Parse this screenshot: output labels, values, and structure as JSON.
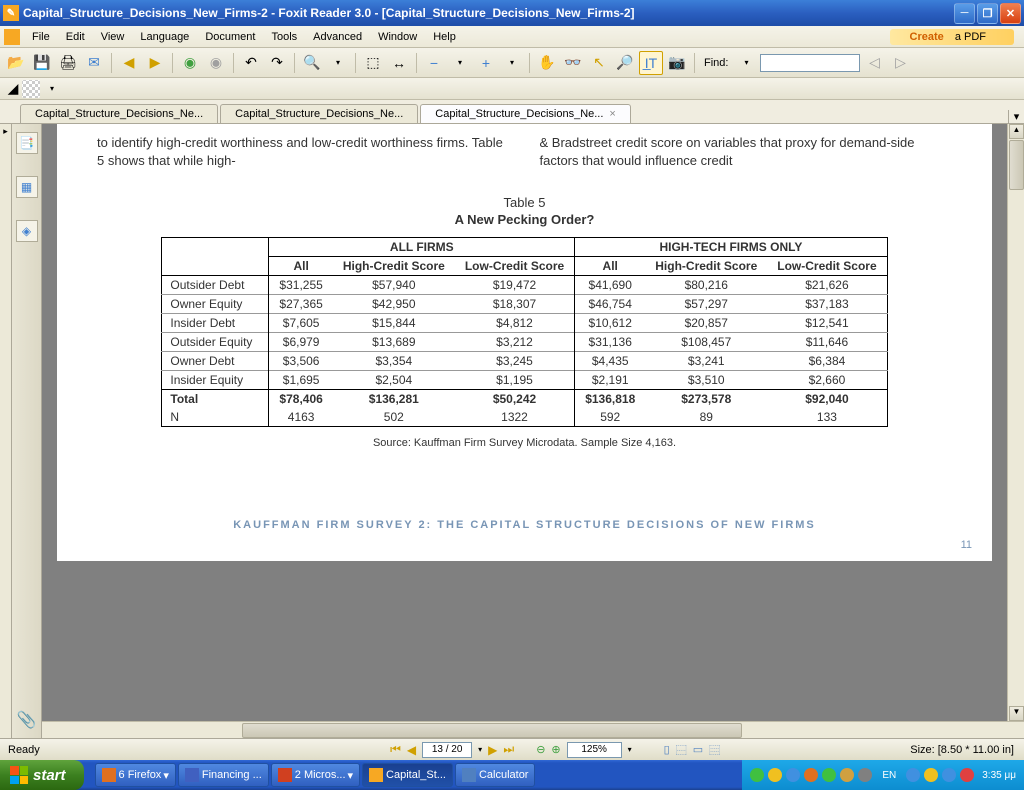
{
  "window": {
    "title": "Capital_Structure_Decisions_New_Firms-2 - Foxit Reader 3.0 - [Capital_Structure_Decisions_New_Firms-2]"
  },
  "menu": {
    "file": "File",
    "edit": "Edit",
    "view": "View",
    "language": "Language",
    "document": "Document",
    "tools": "Tools",
    "advanced": "Advanced",
    "window": "Window",
    "help": "Help",
    "create": "Create",
    "apdf": " a PDF"
  },
  "toolbar": {
    "find": "Find:"
  },
  "tabs": {
    "t1": "Capital_Structure_Decisions_Ne...",
    "t2": "Capital_Structure_Decisions_Ne...",
    "t3": "Capital_Structure_Decisions_Ne..."
  },
  "doc": {
    "col1": "to identify high-credit worthiness and low-credit worthiness firms. Table 5 shows that while high-",
    "col2": "& Bradstreet credit score on variables that proxy for demand-side factors that would influence credit",
    "table_num": "Table 5",
    "table_title": "A New Pecking Order?",
    "group1": "ALL FIRMS",
    "group2": "HIGH-TECH FIRMS ONLY",
    "sub_all": "All",
    "sub_high": "High-Credit Score",
    "sub_low": "Low-Credit Score",
    "rows": {
      "r0": {
        "label": "Outsider Debt",
        "c1": "$31,255",
        "c2": "$57,940",
        "c3": "$19,472",
        "c4": "$41,690",
        "c5": "$80,216",
        "c6": "$21,626"
      },
      "r1": {
        "label": "Owner Equity",
        "c1": "$27,365",
        "c2": "$42,950",
        "c3": "$18,307",
        "c4": "$46,754",
        "c5": "$57,297",
        "c6": "$37,183"
      },
      "r2": {
        "label": "Insider Debt",
        "c1": "$7,605",
        "c2": "$15,844",
        "c3": "$4,812",
        "c4": "$10,612",
        "c5": "$20,857",
        "c6": "$12,541"
      },
      "r3": {
        "label": "Outsider Equity",
        "c1": "$6,979",
        "c2": "$13,689",
        "c3": "$3,212",
        "c4": "$31,136",
        "c5": "$108,457",
        "c6": "$11,646"
      },
      "r4": {
        "label": "Owner Debt",
        "c1": "$3,506",
        "c2": "$3,354",
        "c3": "$3,245",
        "c4": "$4,435",
        "c5": "$3,241",
        "c6": "$6,384"
      },
      "r5": {
        "label": "Insider Equity",
        "c1": "$1,695",
        "c2": "$2,504",
        "c3": "$1,195",
        "c4": "$2,191",
        "c5": "$3,510",
        "c6": "$2,660"
      },
      "total": {
        "label": "Total",
        "c1": "$78,406",
        "c2": "$136,281",
        "c3": "$50,242",
        "c4": "$136,818",
        "c5": "$273,578",
        "c6": "$92,040"
      },
      "n": {
        "label": "N",
        "c1": "4163",
        "c2": "502",
        "c3": "1322",
        "c4": "592",
        "c5": "89",
        "c6": "133"
      }
    },
    "source": "Source: Kauffman Firm Survey Microdata. Sample Size 4,163.",
    "footer": "KAUFFMAN FIRM SURVEY 2: THE CAPITAL STRUCTURE DECISIONS OF NEW FIRMS",
    "page": "11"
  },
  "status": {
    "ready": "Ready",
    "page": "13 / 20",
    "zoom": "125%",
    "size": "Size: [8.50 * 11.00 in]"
  },
  "taskbar": {
    "start": "start",
    "t1": "6 Firefox",
    "t2": "Financing ...",
    "t3": "2 Micros...",
    "t4": "Capital_St...",
    "t5": "Calculator",
    "lang": "EN",
    "time": "3:35 μμ"
  }
}
